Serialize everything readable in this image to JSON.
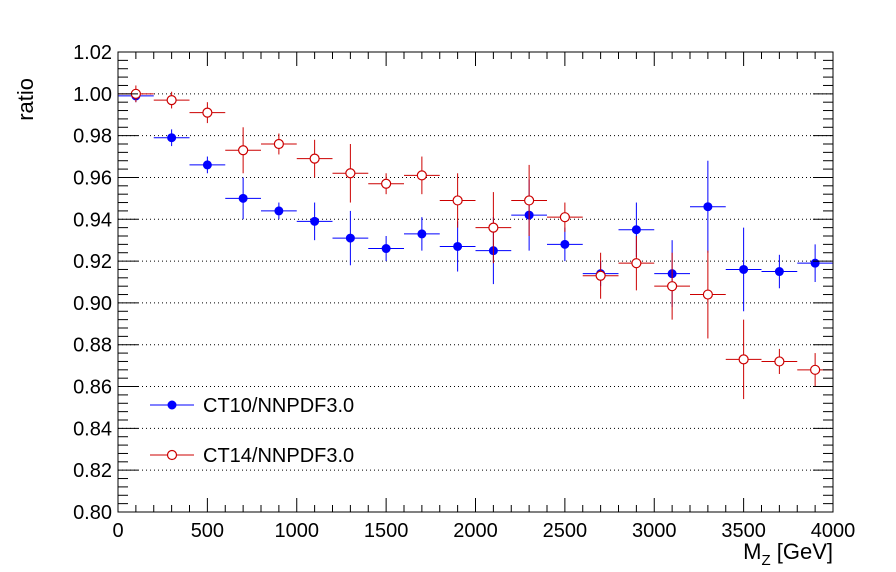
{
  "chart_data": {
    "type": "scatter",
    "title": "",
    "xlabel": "M",
    "xlabel_sub": "Z",
    "xlabel_unit": " [GeV]",
    "ylabel": "ratio",
    "xlim": [
      0,
      4000
    ],
    "ylim": [
      0.8,
      1.02
    ],
    "x_ticks": [
      0,
      500,
      1000,
      1500,
      2000,
      2500,
      3000,
      3500,
      4000
    ],
    "x_tick_labels": [
      "0",
      "500",
      "1000",
      "1500",
      "2000",
      "2500",
      "3000",
      "3500",
      "4000"
    ],
    "y_ticks": [
      0.8,
      0.82,
      0.84,
      0.86,
      0.88,
      0.9,
      0.92,
      0.94,
      0.96,
      0.98,
      1.0,
      1.02
    ],
    "y_tick_labels": [
      "0.80",
      "0.82",
      "0.84",
      "0.86",
      "0.88",
      "0.90",
      "0.92",
      "0.94",
      "0.96",
      "0.98",
      "1.00",
      "1.02"
    ],
    "grid": "horizontal dotted",
    "legend_position": "bottom-left",
    "x_bin_halfwidth": 100,
    "series": [
      {
        "name": "CT10/NNPDF3.0",
        "color": "#0000ff",
        "marker": "filled-circle",
        "x": [
          100,
          300,
          500,
          700,
          900,
          1100,
          1300,
          1500,
          1700,
          1900,
          2100,
          2300,
          2500,
          2700,
          2900,
          3100,
          3300,
          3500,
          3700,
          3900
        ],
        "y": [
          0.999,
          0.979,
          0.966,
          0.95,
          0.944,
          0.939,
          0.931,
          0.926,
          0.933,
          0.927,
          0.925,
          0.942,
          0.928,
          0.914,
          0.935,
          0.914,
          0.946,
          0.916,
          0.915,
          0.919
        ],
        "y_err": [
          0.003,
          0.004,
          0.004,
          0.01,
          0.004,
          0.009,
          0.013,
          0.006,
          0.008,
          0.012,
          0.016,
          0.017,
          0.008,
          0.006,
          0.013,
          0.016,
          0.022,
          0.02,
          0.008,
          0.009
        ]
      },
      {
        "name": "CT14/NNPDF3.0",
        "color": "#cc0000",
        "marker": "open-circle",
        "x": [
          100,
          300,
          500,
          700,
          900,
          1100,
          1300,
          1500,
          1700,
          1900,
          2100,
          2300,
          2500,
          2700,
          2900,
          3100,
          3300,
          3500,
          3700,
          3900
        ],
        "y": [
          1.0,
          0.997,
          0.991,
          0.973,
          0.976,
          0.969,
          0.962,
          0.957,
          0.961,
          0.949,
          0.936,
          0.949,
          0.941,
          0.913,
          0.919,
          0.908,
          0.904,
          0.873,
          0.872,
          0.868
        ],
        "y_err": [
          0.004,
          0.004,
          0.005,
          0.011,
          0.005,
          0.009,
          0.014,
          0.005,
          0.009,
          0.013,
          0.017,
          0.017,
          0.007,
          0.011,
          0.013,
          0.016,
          0.021,
          0.019,
          0.006,
          0.008
        ]
      }
    ]
  }
}
